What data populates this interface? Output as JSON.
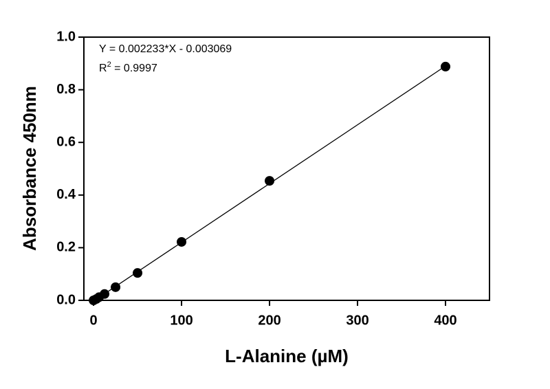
{
  "chart_data": {
    "type": "scatter",
    "x_label": "L-Alanine (µM)",
    "y_label": "Absorbance 450nm",
    "x": [
      0,
      3.125,
      6.25,
      12.5,
      25,
      50,
      100,
      200,
      400
    ],
    "series": [
      {
        "color": "#000000",
        "values": [
          0,
          0.005,
          0.012,
          0.024,
          0.05,
          0.104,
          0.222,
          0.454,
          0.888
        ]
      }
    ],
    "xlim": [
      -11,
      450
    ],
    "ylim": [
      0,
      1
    ],
    "xticks": [
      0,
      100,
      200,
      300,
      400
    ],
    "yticks": [
      {
        "value": 0,
        "label": "0.0"
      },
      0.2,
      0.4,
      0.6,
      0.8,
      {
        "value": 1,
        "label": "1.0"
      }
    ],
    "fit": {
      "slope": 0.002233,
      "intercept": -0.003069
    },
    "equation": "Y = 0.002233*X - 0.003069",
    "r_squared": {
      "base": "R",
      "sup": "2",
      "text": " = 0.9997"
    }
  }
}
